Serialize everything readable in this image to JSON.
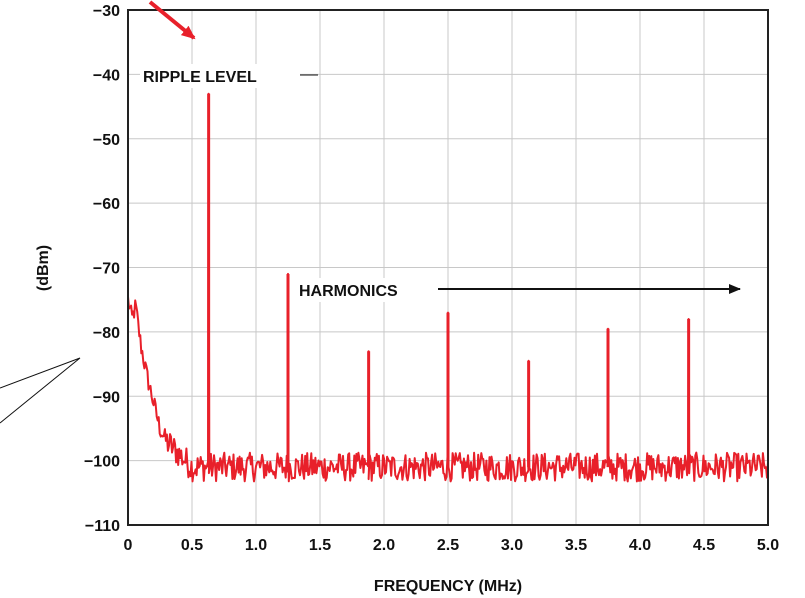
{
  "chart_data": {
    "type": "line",
    "title": "",
    "xlabel": "FREQUENCY (MHz)",
    "ylabel": "(dBm)",
    "xlim": [
      0,
      5.0
    ],
    "ylim": [
      -110,
      -30
    ],
    "x_ticks": [
      "0",
      "0.5",
      "1.0",
      "1.5",
      "2.0",
      "2.5",
      "3.0",
      "3.5",
      "4.0",
      "4.5",
      "5.0"
    ],
    "y_ticks": [
      "−30",
      "−40",
      "−50",
      "−60",
      "−70",
      "−80",
      "−90",
      "−100",
      "−110"
    ],
    "grid": true,
    "line_color": "#e8202a",
    "noise_floor_dbm": -101,
    "low_freq_rolloff": [
      {
        "x": 0.0,
        "y": -75
      },
      {
        "x": 0.03,
        "y": -78
      },
      {
        "x": 0.06,
        "y": -76
      },
      {
        "x": 0.1,
        "y": -82
      },
      {
        "x": 0.15,
        "y": -87
      },
      {
        "x": 0.2,
        "y": -91
      },
      {
        "x": 0.25,
        "y": -95
      },
      {
        "x": 0.3,
        "y": -97
      },
      {
        "x": 0.4,
        "y": -99
      },
      {
        "x": 0.5,
        "y": -101
      }
    ],
    "peaks": [
      {
        "x": 0.63,
        "y": -43
      },
      {
        "x": 1.25,
        "y": -71
      },
      {
        "x": 1.88,
        "y": -83
      },
      {
        "x": 2.5,
        "y": -77
      },
      {
        "x": 3.13,
        "y": -84.5
      },
      {
        "x": 3.75,
        "y": -79.5
      },
      {
        "x": 4.38,
        "y": -78
      }
    ],
    "annotations": {
      "ripple_label": "RIPPLE LEVEL",
      "harmonics_label": "HARMONICS"
    }
  }
}
